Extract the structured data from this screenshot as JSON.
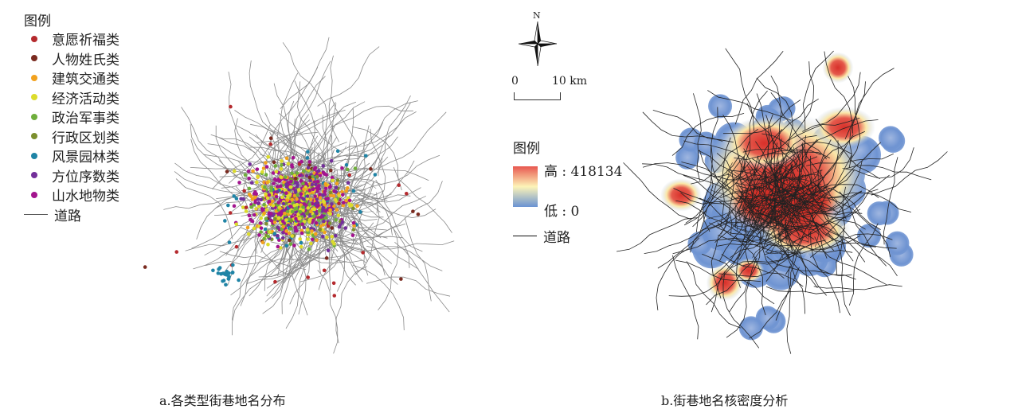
{
  "left_map": {
    "legend_title": "图例",
    "categories": [
      {
        "label": "意愿祈福类",
        "color": "#b52a2e"
      },
      {
        "label": "人物姓氏类",
        "color": "#7a2b20"
      },
      {
        "label": "建筑交通类",
        "color": "#f2a21e"
      },
      {
        "label": "经济活动类",
        "color": "#dcdc2c"
      },
      {
        "label": "政治军事类",
        "color": "#6fae3c"
      },
      {
        "label": "行政区划类",
        "color": "#7c8f2e"
      },
      {
        "label": "风景园林类",
        "color": "#1f84a6"
      },
      {
        "label": "方位序数类",
        "color": "#73309a"
      },
      {
        "label": "山水地物类",
        "color": "#a3148e"
      }
    ],
    "road_label": "道路",
    "caption": "a.各类型街巷地名分布"
  },
  "right_map": {
    "north_label": "N",
    "scale_zero": "0",
    "scale_end": "10 km",
    "legend_title": "图例",
    "high_label": "高 : 418134",
    "low_label": "低 : 0",
    "road_label": "道路",
    "colors": {
      "high": "#e8574f",
      "mid": "#fdf4b8",
      "low": "#6a93d3"
    },
    "caption": "b.街巷地名核密度分析"
  }
}
